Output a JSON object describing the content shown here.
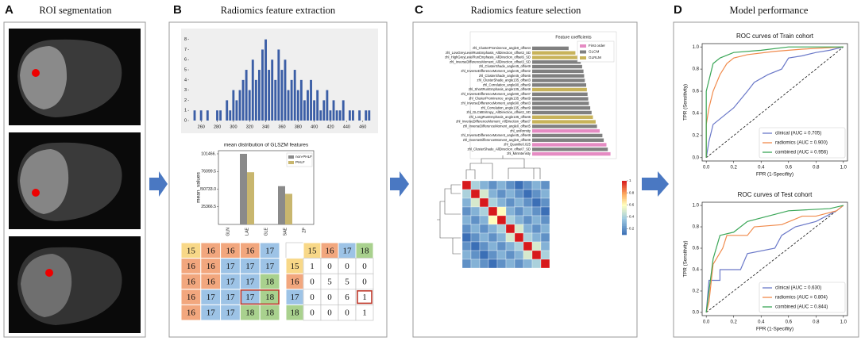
{
  "panels": [
    {
      "letter": "A",
      "title": "ROI segmentation"
    },
    {
      "letter": "B",
      "title": "Radiomics feature extraction"
    },
    {
      "letter": "C",
      "title": "Radiomics feature selection"
    },
    {
      "letter": "D",
      "title": "Model performance"
    }
  ],
  "chart_data": [
    {
      "type": "histogram",
      "bins": [
        250,
        254,
        258,
        262,
        266,
        270,
        274,
        278,
        282,
        286,
        290,
        294,
        298,
        302,
        306,
        310,
        314,
        318,
        322,
        326,
        330,
        334,
        338,
        342,
        346,
        350,
        354,
        358,
        362,
        366,
        370,
        374,
        378,
        382,
        386,
        390,
        394,
        398,
        402,
        406,
        410,
        414,
        418,
        422,
        426,
        430,
        434,
        438,
        442,
        446,
        450,
        454,
        458,
        462,
        466,
        470
      ],
      "counts": [
        1,
        0,
        1,
        0,
        1,
        0,
        0,
        1,
        1,
        0,
        2,
        1,
        3,
        2,
        3,
        4,
        5,
        3,
        6,
        4,
        5,
        7,
        8,
        5,
        6,
        4,
        7,
        5,
        6,
        3,
        4,
        5,
        3,
        4,
        2,
        3,
        4,
        2,
        3,
        1,
        2,
        3,
        1,
        2,
        1,
        1,
        2,
        0,
        1,
        1,
        0,
        1,
        0,
        1,
        1
      ],
      "color": "#3b5ea6",
      "xlim": [
        245,
        475
      ],
      "xticks": [
        260,
        280,
        300,
        320,
        340,
        360,
        380,
        400,
        420,
        440,
        460
      ],
      "ylim": [
        0,
        8.6
      ],
      "yticks": [
        0,
        1,
        2,
        3,
        4,
        5,
        6,
        7,
        8
      ]
    },
    {
      "type": "bar",
      "title": "mean distribution of GLSZM features",
      "y_label": "mean_values",
      "categories": [
        "GLN",
        "LAE",
        "GLE",
        "SAE",
        "ZP"
      ],
      "series": [
        {
          "name": "non-PHLF",
          "color": "#8a8a8a",
          "values": [
            0,
            101466,
            0,
            55000,
            0
          ]
        },
        {
          "name": "PHLF",
          "color": "#c8b66e",
          "values": [
            0,
            75000,
            0,
            44000,
            0
          ]
        }
      ],
      "ylim": [
        0,
        106000
      ],
      "yticks": [
        25366.5,
        {
          "value": 50733,
          "label": "50733.0"
        },
        76099.5,
        {
          "value": 101466,
          "label": "101466."
        }
      ],
      "legend": "upper right"
    },
    {
      "type": "barh",
      "title": "Feature coefficients",
      "categories": [
        "zhl_ClusterProminence_angle0_offset4",
        "zhl_LowGreyLevelRunEmphasis_AllDirection_offset3_SD",
        "zhl_HighGreyLevelRunEmphasis_AllDirection_offset6_SD",
        "zhl_InverseDifferenceMoment_AllDirection_offset3_SD",
        "zhl_ClusterShade_angle45_offset9",
        "zhl_InverseDifferenceMoment_angle45_offset2",
        "zhl_ClusterShade_angle45_offset6",
        "zhl_ClusterShade_angle135_offset3",
        "zhl_Correlation_angle90_offset9",
        "zhl_ShortRunEmphasis_angle135_offset8",
        "zhl_InverseDifferenceMoment_angle90_offset7",
        "zhl_ClusterProminence_angle135_offset9",
        "zhl_InverseDifferenceMoment_angle90_offset3",
        "zhl_Correlation_angle135_offset9",
        "zhl_GLCMEntropy_AllDirection_offset2_SD",
        "zhl_LongRunEmphasis_angle135_offset6",
        "zhl_InverseDifferenceMoment_AllDirection_offset7",
        "zhl_InverseDifferenceMoment_angle0_offset5",
        "zhl_uniformity",
        "zhl_InverseDifferenceMoment_angle45_offset8",
        "zhl_InverseDifferenceMoment_angle0_offset9",
        "zhl_Quantile0.025",
        "zhl_ClusterShade_AllDirection_offset7_SD",
        "zhl_MinIntensity"
      ],
      "values": [
        0.27,
        0.32,
        0.34,
        0.36,
        0.37,
        0.38,
        0.385,
        0.39,
        0.4,
        0.405,
        0.41,
        0.415,
        0.42,
        0.43,
        0.44,
        0.45,
        0.47,
        0.48,
        0.5,
        0.52,
        0.53,
        0.55,
        0.56,
        0.58
      ],
      "groups": [
        "GLCM",
        "GLRLM",
        "GLRLM",
        "GLCM",
        "GLCM",
        "GLCM",
        "GLCM",
        "GLCM",
        "GLCM",
        "GLRLM",
        "GLCM",
        "GLCM",
        "GLCM",
        "GLCM",
        "GLCM",
        "GLRLM",
        "GLRLM",
        "GLCM",
        "First order",
        "GLCM",
        "GLCM",
        "First order",
        "GLCM",
        "First order"
      ],
      "legend_entries": [
        {
          "name": "First order",
          "color": "#e58bc3"
        },
        {
          "name": "GLCM",
          "color": "#808080"
        },
        {
          "name": "GLRLM",
          "color": "#c8b35a"
        }
      ],
      "xlim": [
        0,
        0.6
      ],
      "legend": "upper right"
    },
    {
      "type": "line",
      "title": "ROC curves of Train cohort",
      "x_label": "FPR (1-Specifity)",
      "y_label": "TPR (Sensitivity)",
      "series": [
        {
          "name": "clinical (AUC = 0.705)",
          "color": "#6a78c8",
          "x": [
            0,
            0.02,
            0.05,
            0.1,
            0.2,
            0.3,
            0.35,
            0.45,
            0.55,
            0.6,
            0.7,
            0.8,
            0.9,
            1
          ],
          "values": [
            0,
            0.15,
            0.3,
            0.35,
            0.45,
            0.6,
            0.68,
            0.75,
            0.8,
            0.9,
            0.92,
            0.95,
            0.97,
            1
          ]
        },
        {
          "name": "radiomics (AUC = 0.900)",
          "color": "#f08a4b",
          "x": [
            0,
            0,
            0.02,
            0.05,
            0.1,
            0.15,
            0.2,
            0.3,
            0.5,
            0.7,
            1
          ],
          "values": [
            0,
            0.3,
            0.45,
            0.6,
            0.75,
            0.85,
            0.9,
            0.93,
            0.96,
            0.98,
            1
          ]
        },
        {
          "name": "combined (AUC = 0.956)",
          "color": "#3aa657",
          "x": [
            0,
            0,
            0.02,
            0.05,
            0.1,
            0.2,
            0.4,
            0.6,
            1
          ],
          "values": [
            0,
            0.6,
            0.7,
            0.85,
            0.9,
            0.95,
            0.97,
            1,
            1
          ]
        }
      ],
      "xlim": [
        -0.03,
        1.03
      ],
      "ylim": [
        -0.03,
        1.03
      ],
      "xticks": [
        {
          "value": 0,
          "label": "0.0"
        },
        0.2,
        0.4,
        0.6,
        0.8,
        {
          "value": 1,
          "label": "1.0"
        }
      ],
      "yticks": [
        {
          "value": 0,
          "label": "0.0"
        },
        0.2,
        0.4,
        0.6,
        0.8,
        {
          "value": 1,
          "label": "1.0"
        }
      ],
      "legend": "lower right"
    },
    {
      "type": "line",
      "title": "ROC curves of Test cohort",
      "x_label": "FPR (1-Specifity)",
      "y_label": "TPR (Sensitivity)",
      "series": [
        {
          "name": "clinical (AUC = 0.630)",
          "color": "#6a78c8",
          "x": [
            0,
            0.02,
            0.1,
            0.1,
            0.25,
            0.3,
            0.5,
            0.55,
            0.65,
            0.8,
            0.95,
            1
          ],
          "values": [
            0,
            0.3,
            0.3,
            0.4,
            0.4,
            0.55,
            0.6,
            0.72,
            0.8,
            0.85,
            0.95,
            1
          ]
        },
        {
          "name": "radiomics (AUC = 0.804)",
          "color": "#f08a4b",
          "x": [
            0,
            0.02,
            0.05,
            0.12,
            0.15,
            0.3,
            0.35,
            0.55,
            0.7,
            0.8,
            0.95,
            1
          ],
          "values": [
            0,
            0.1,
            0.45,
            0.6,
            0.72,
            0.72,
            0.8,
            0.82,
            0.9,
            0.9,
            0.95,
            1
          ]
        },
        {
          "name": "combined (AUC = 0.844)",
          "color": "#3aa657",
          "x": [
            0,
            0.02,
            0.05,
            0.1,
            0.2,
            0.3,
            0.45,
            0.6,
            0.9,
            1
          ],
          "values": [
            0,
            0.2,
            0.5,
            0.72,
            0.75,
            0.85,
            0.9,
            0.95,
            0.97,
            1
          ]
        }
      ],
      "xlim": [
        -0.03,
        1.03
      ],
      "ylim": [
        -0.03,
        1.03
      ],
      "xticks": [
        {
          "value": 0,
          "label": "0.0"
        },
        0.2,
        0.4,
        0.6,
        0.8,
        {
          "value": 1,
          "label": "1.0"
        }
      ],
      "yticks": [
        {
          "value": 0,
          "label": "0.0"
        },
        0.2,
        0.4,
        0.6,
        0.8,
        {
          "value": 1,
          "label": "1.0"
        }
      ],
      "legend": "lower right"
    }
  ],
  "heatmap": {
    "values": [
      [
        1,
        0.4,
        0.3,
        0.2,
        0.3,
        0.2,
        0.1,
        0.2,
        0.3,
        0.2
      ],
      [
        0.4,
        1,
        0.5,
        0.3,
        0.2,
        0.3,
        0.2,
        0.1,
        0.2,
        0.3
      ],
      [
        0.3,
        0.5,
        1,
        0.4,
        0.3,
        0.2,
        0.3,
        0.2,
        0.1,
        0.2
      ],
      [
        0.2,
        0.3,
        0.4,
        1,
        0.6,
        0.3,
        0.2,
        0.3,
        0.2,
        0.1
      ],
      [
        0.3,
        0.2,
        0.3,
        0.6,
        1,
        0.4,
        0.3,
        0.2,
        0.3,
        0.2
      ],
      [
        0.2,
        0.3,
        0.2,
        0.3,
        0.4,
        1,
        0.5,
        0.3,
        0.2,
        0.3
      ],
      [
        0.1,
        0.2,
        0.3,
        0.2,
        0.3,
        0.5,
        1,
        0.4,
        0.3,
        0.2
      ],
      [
        0.2,
        0.1,
        0.2,
        0.3,
        0.2,
        0.3,
        0.4,
        1,
        0.5,
        0.3
      ],
      [
        0.3,
        0.2,
        0.1,
        0.2,
        0.3,
        0.2,
        0.3,
        0.5,
        1,
        0.4
      ],
      [
        0.2,
        0.3,
        0.2,
        0.1,
        0.2,
        0.3,
        0.2,
        0.3,
        0.4,
        1
      ]
    ],
    "clim": [
      0.1,
      1
    ],
    "ticks": [
      0.2,
      0.4,
      0.6,
      0.8,
      1
    ]
  },
  "matrices": {
    "level_colors": {
      "15": "#f8d888",
      "16": "#f2a77e",
      "17": "#9dc3e6",
      "18": "#a9d18e"
    },
    "image": [
      [
        15,
        16,
        16,
        16,
        17
      ],
      [
        16,
        16,
        17,
        17,
        17
      ],
      [
        16,
        16,
        17,
        17,
        18
      ],
      [
        16,
        17,
        17,
        17,
        18
      ],
      [
        16,
        17,
        17,
        18,
        18
      ]
    ],
    "glszm": {
      "columns": [
        15,
        16,
        17,
        18
      ],
      "rows": [
        {
          "label": 15,
          "values": [
            1,
            0,
            0,
            0
          ]
        },
        {
          "label": 16,
          "values": [
            0,
            5,
            5,
            0
          ]
        },
        {
          "label": 17,
          "values": [
            0,
            0,
            6,
            1
          ]
        },
        {
          "label": 18,
          "values": [
            0,
            0,
            0,
            1
          ]
        }
      ]
    }
  }
}
